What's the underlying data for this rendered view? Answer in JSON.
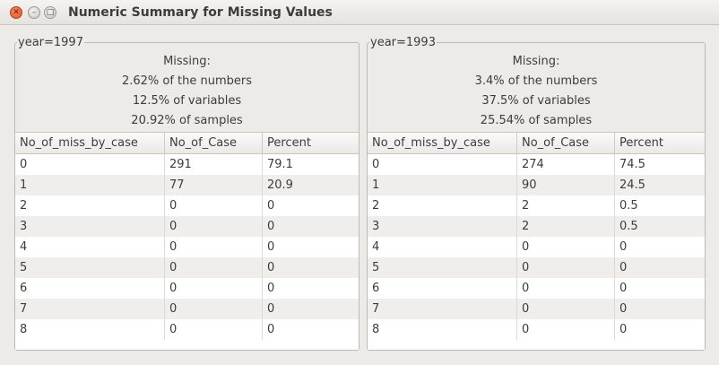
{
  "window": {
    "title": "Numeric Summary for Missing Values"
  },
  "panels": [
    {
      "legend": "year=1997",
      "summary": [
        "Missing:",
        "2.62% of the numbers",
        "12.5% of variables",
        "20.92% of samples"
      ],
      "columns": [
        "No_of_miss_by_case",
        "No_of_Case",
        "Percent"
      ],
      "rows": [
        [
          "0",
          "291",
          "79.1"
        ],
        [
          "1",
          "77",
          "20.9"
        ],
        [
          "2",
          "0",
          "0"
        ],
        [
          "3",
          "0",
          "0"
        ],
        [
          "4",
          "0",
          "0"
        ],
        [
          "5",
          "0",
          "0"
        ],
        [
          "6",
          "0",
          "0"
        ],
        [
          "7",
          "0",
          "0"
        ],
        [
          "8",
          "0",
          "0"
        ]
      ]
    },
    {
      "legend": "year=1993",
      "summary": [
        "Missing:",
        "3.4% of the numbers",
        "37.5% of variables",
        "25.54% of samples"
      ],
      "columns": [
        "No_of_miss_by_case",
        "No_of_Case",
        "Percent"
      ],
      "rows": [
        [
          "0",
          "274",
          "74.5"
        ],
        [
          "1",
          "90",
          "24.5"
        ],
        [
          "2",
          "2",
          "0.5"
        ],
        [
          "3",
          "2",
          "0.5"
        ],
        [
          "4",
          "0",
          "0"
        ],
        [
          "5",
          "0",
          "0"
        ],
        [
          "6",
          "0",
          "0"
        ],
        [
          "7",
          "0",
          "0"
        ],
        [
          "8",
          "0",
          "0"
        ]
      ]
    }
  ]
}
